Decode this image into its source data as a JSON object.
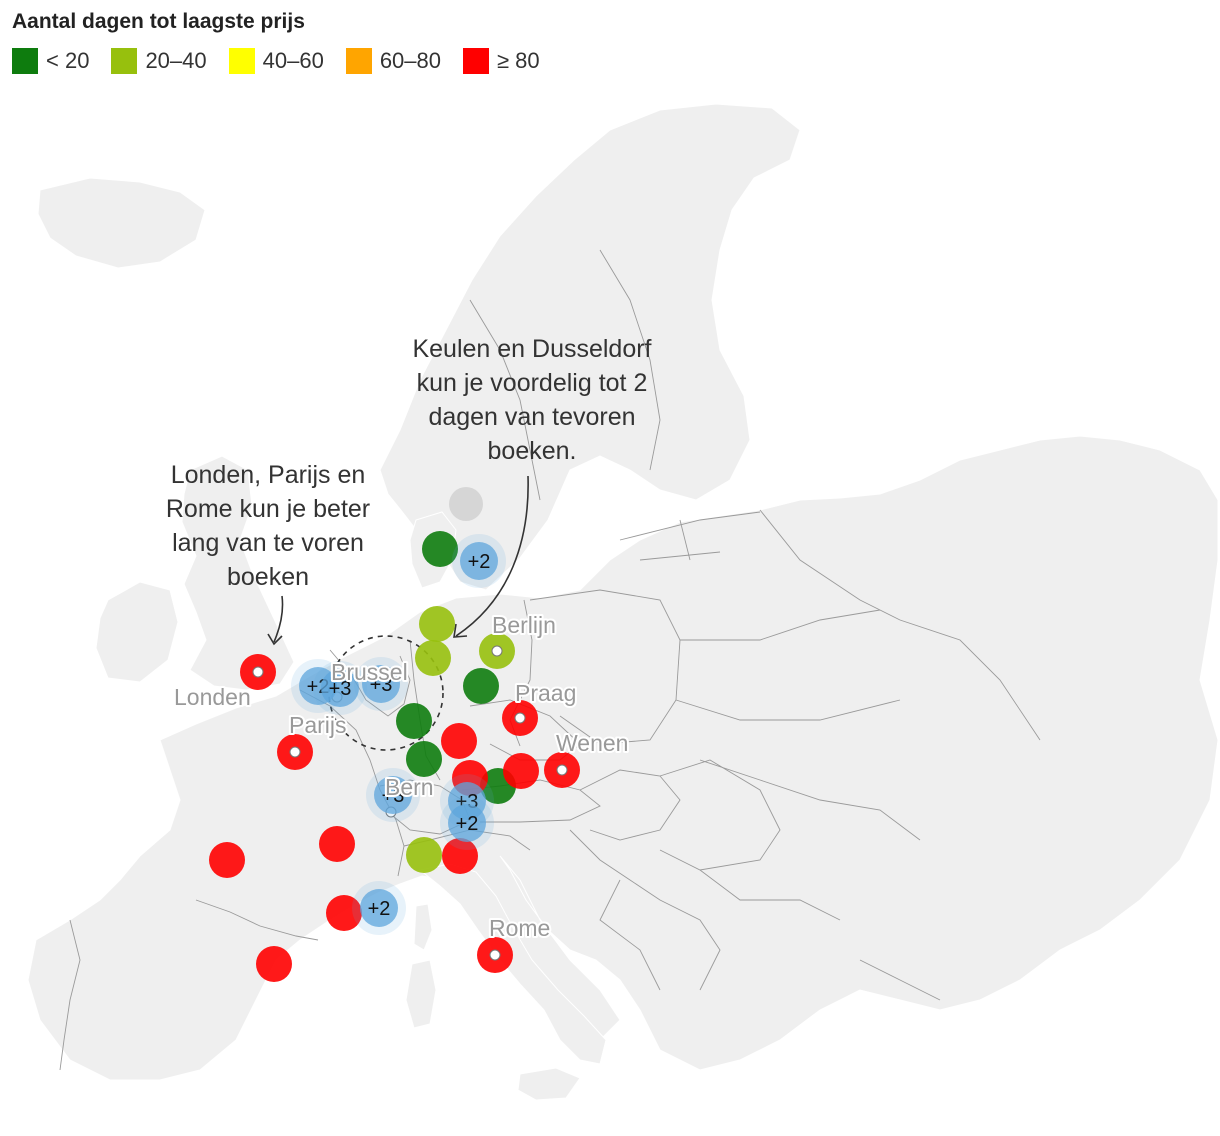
{
  "legend": {
    "title": "Aantal dagen tot laagste prijs",
    "items": [
      {
        "label": "< 20",
        "color": "#0e7c0e"
      },
      {
        "label": "20–40",
        "color": "#97c00d"
      },
      {
        "label": "40–60",
        "color": "#ffff00"
      },
      {
        "label": "60–80",
        "color": "#ffa500"
      },
      {
        "label": "≥ 80",
        "color": "#ff0000"
      }
    ]
  },
  "annotations": {
    "left": [
      "Londen, Parijs en",
      "Rome kun je beter",
      "lang van te voren",
      "boeken"
    ],
    "right": [
      "Keulen en Dusseldorf",
      "kun je voordelig tot 2",
      "dagen van tevoren",
      "boeken."
    ]
  },
  "cities": {
    "berlin": "Berlijn",
    "praag": "Praag",
    "wenen": "Wenen",
    "brussel": "Brussel",
    "londen": "Londen",
    "parijs": "Parijs",
    "bern": "Bern",
    "rome": "Rome"
  },
  "clusters": {
    "c1": "+2",
    "c2": "+2",
    "c3": "+3",
    "c4": "+3",
    "c5": "+3",
    "c6": "+3",
    "c7": "+2",
    "c8": "+2"
  },
  "colors": {
    "red": "#ff0000",
    "green": "#0e7c0e",
    "lightgreen": "#97c00d",
    "grey": "#cccccc",
    "blue": "#5ea6dc"
  }
}
